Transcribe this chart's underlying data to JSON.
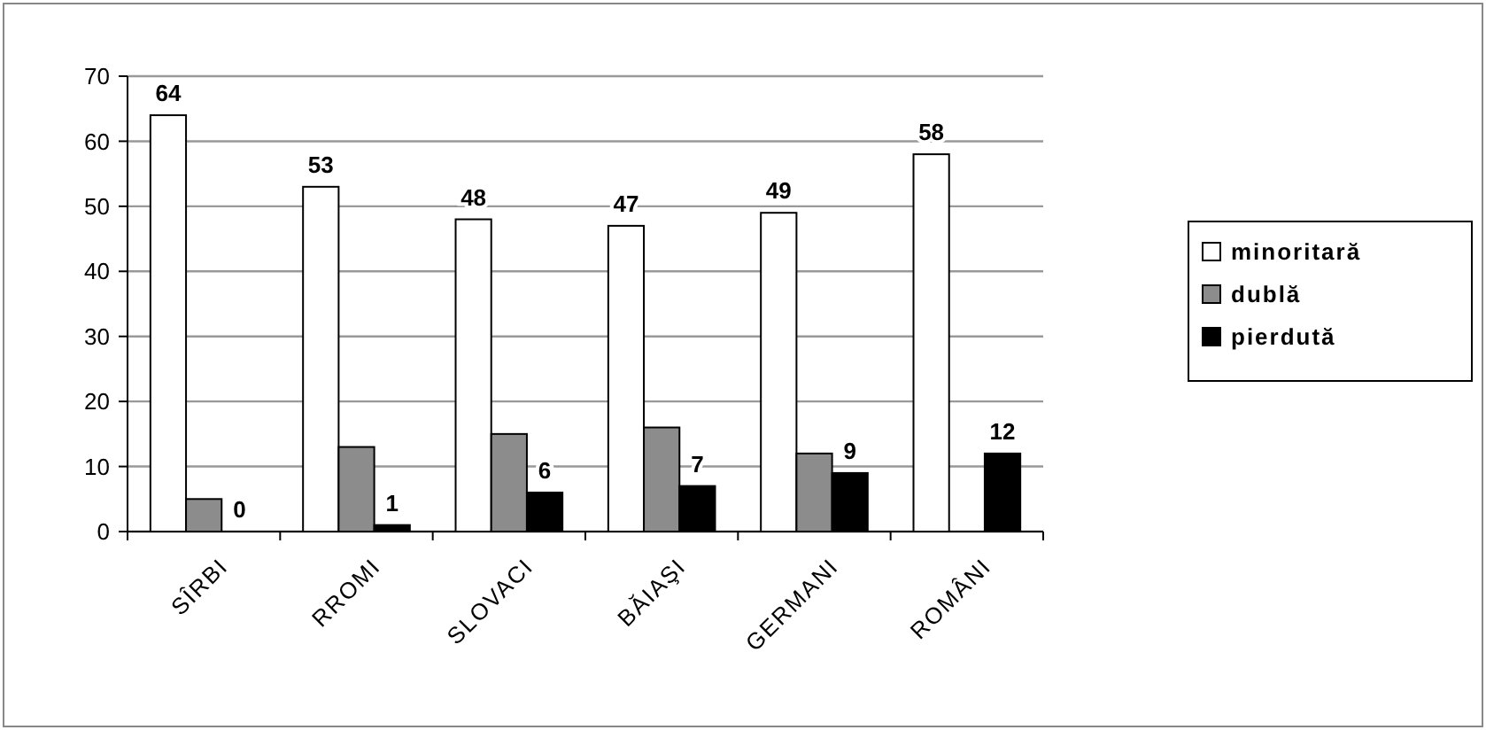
{
  "chart_data": {
    "type": "bar",
    "categories": [
      "SÎRBI",
      "RROMI",
      "SLOVACI",
      "BĂIAŞI",
      "GERMANI",
      "ROMÂNI"
    ],
    "series": [
      {
        "name": "minoritară",
        "color": "#ffffff",
        "values": [
          64,
          53,
          48,
          47,
          49,
          58
        ],
        "value_labels": [
          "64",
          "53",
          "48",
          "47",
          "49",
          "58"
        ]
      },
      {
        "name": "dublă",
        "color": "#8c8c8c",
        "values": [
          5,
          13,
          15,
          16,
          12,
          null
        ]
      },
      {
        "name": "pierdută",
        "color": "#000000",
        "values": [
          0,
          1,
          6,
          7,
          9,
          12
        ],
        "value_labels": [
          "0",
          "1",
          "6",
          "7",
          "9",
          "12"
        ]
      }
    ],
    "ylim": [
      0,
      70
    ],
    "yticks": [
      0,
      10,
      20,
      30,
      40,
      50,
      60,
      70
    ],
    "grid": "y",
    "legend": "right"
  }
}
